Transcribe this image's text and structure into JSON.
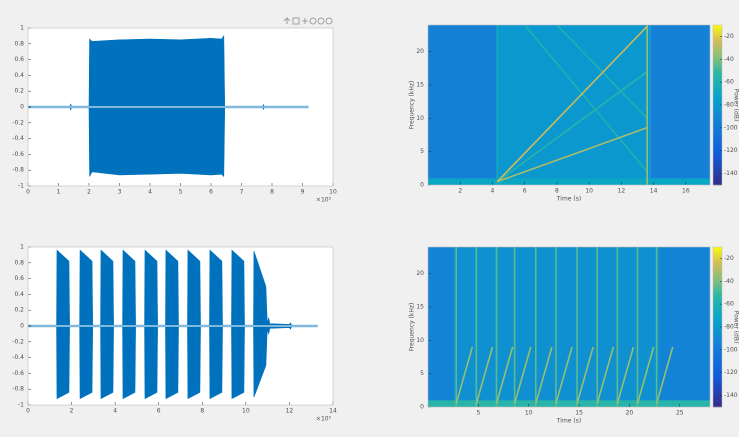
{
  "chart_data": [
    {
      "type": "waveform",
      "x_exponent_label": "×10⁵",
      "xlim": [
        0,
        10
      ],
      "xticks": [
        0,
        1,
        2,
        3,
        4,
        5,
        6,
        7,
        8,
        9,
        10
      ],
      "ylim": [
        -1,
        1
      ],
      "yticks": [
        -1,
        -0.8,
        -0.6,
        -0.4,
        -0.2,
        0,
        0.2,
        0.4,
        0.6,
        0.8,
        1
      ],
      "x": [
        0,
        1.38,
        1.4,
        1.42,
        2.0,
        2.02,
        2.1,
        3.0,
        4.0,
        5.0,
        6.0,
        6.35,
        6.42,
        6.45,
        7.7,
        7.72,
        7.74,
        9.2
      ],
      "series": [
        {
          "color": "#0072bd",
          "values": [
            0.01,
            0.01,
            0.04,
            0.01,
            0.01,
            0.86,
            0.83,
            0.85,
            0.86,
            0.85,
            0.87,
            0.86,
            0.9,
            0.01,
            0.01,
            0.03,
            0.01,
            0.01
          ]
        },
        {
          "color": "#0072bd",
          "values": [
            -0.01,
            -0.01,
            -0.04,
            -0.01,
            -0.01,
            -0.88,
            -0.82,
            -0.86,
            -0.85,
            -0.84,
            -0.86,
            -0.85,
            -0.88,
            -0.01,
            -0.01,
            -0.03,
            -0.01,
            -0.01
          ]
        }
      ]
    },
    {
      "type": "spectrogram",
      "colormap": "parula",
      "xlabel": "Time (s)",
      "ylabel": "Frequency (kHz)",
      "clabel": "Power (dB)",
      "xlim": [
        0,
        17.5
      ],
      "xticks": [
        2,
        4,
        6,
        8,
        10,
        12,
        14,
        16
      ],
      "ylim": [
        0,
        24
      ],
      "yticks": [
        0,
        5,
        10,
        15,
        20
      ],
      "clim": [
        -150,
        -10
      ],
      "cticks": [
        -20,
        -40,
        -60,
        -80,
        -100,
        -120,
        -140
      ],
      "regions": [
        {
          "x": [
            0,
            4.3
          ],
          "y": [
            0,
            24
          ],
          "power": -95
        },
        {
          "x": [
            4.3,
            13.8
          ],
          "y": [
            0,
            24
          ],
          "power": -80
        },
        {
          "x": [
            13.8,
            17.5
          ],
          "y": [
            0,
            24
          ],
          "power": -95
        },
        {
          "x": [
            0,
            17.5
          ],
          "y": [
            0,
            1
          ],
          "power": -70
        }
      ],
      "tracks": [
        {
          "x": [
            4.3,
            4.3
          ],
          "y": [
            0,
            24
          ],
          "power": -65
        },
        {
          "x": [
            6,
            13.6
          ],
          "y": [
            24,
            2
          ],
          "power": -60
        },
        {
          "x": [
            8,
            13.6
          ],
          "y": [
            24,
            10
          ],
          "power": -60
        },
        {
          "x": [
            4.3,
            13.6
          ],
          "y": [
            0.5,
            17
          ],
          "power": -55
        },
        {
          "x": [
            13.6,
            13.6
          ],
          "y": [
            0,
            24
          ],
          "power": -35
        },
        {
          "x": [
            4.3,
            13.6
          ],
          "y": [
            0.5,
            8.6
          ],
          "power": -30
        },
        {
          "x": [
            4.3,
            13.6
          ],
          "y": [
            0.5,
            23.8
          ],
          "power": -25
        }
      ]
    },
    {
      "type": "waveform",
      "x_exponent_label": "×10⁵",
      "xlim": [
        0,
        14
      ],
      "xticks": [
        0,
        2,
        4,
        6,
        8,
        10,
        12,
        14
      ],
      "ylim": [
        -1,
        1
      ],
      "yticks": [
        -1,
        -0.8,
        -0.6,
        -0.4,
        -0.2,
        0,
        0.2,
        0.4,
        0.6,
        0.8,
        1
      ],
      "x": [
        0,
        1.31,
        1.33,
        1.88,
        1.91,
        2.37,
        2.39,
        2.94,
        2.97,
        3.33,
        3.35,
        3.9,
        3.93,
        4.34,
        4.36,
        4.91,
        4.94,
        5.35,
        5.37,
        5.92,
        5.95,
        6.31,
        6.33,
        6.88,
        6.91,
        7.32,
        7.34,
        7.89,
        7.92,
        8.33,
        8.35,
        8.9,
        8.93,
        9.34,
        9.36,
        9.91,
        9.94,
        10.35,
        10.37,
        10.92,
        10.98,
        11.05,
        11.1,
        12.0,
        12.05,
        12.1,
        13.3
      ],
      "series": [
        {
          "color": "#0072bd",
          "values": [
            0.01,
            0.01,
            0.96,
            0.82,
            0.01,
            0.01,
            0.96,
            0.82,
            0.01,
            0.01,
            0.96,
            0.82,
            0.01,
            0.01,
            0.96,
            0.82,
            0.01,
            0.01,
            0.96,
            0.82,
            0.01,
            0.01,
            0.96,
            0.82,
            0.01,
            0.01,
            0.96,
            0.82,
            0.01,
            0.01,
            0.96,
            0.82,
            0.01,
            0.01,
            0.96,
            0.82,
            0.01,
            0.01,
            0.95,
            0.5,
            0.05,
            0.1,
            0.03,
            0.02,
            0.04,
            0.01,
            0.01
          ]
        },
        {
          "color": "#0072bd",
          "values": [
            -0.01,
            -0.01,
            -0.92,
            -0.84,
            -0.01,
            -0.01,
            -0.92,
            -0.84,
            -0.01,
            -0.01,
            -0.92,
            -0.84,
            -0.01,
            -0.01,
            -0.92,
            -0.84,
            -0.01,
            -0.01,
            -0.92,
            -0.84,
            -0.01,
            -0.01,
            -0.92,
            -0.84,
            -0.01,
            -0.01,
            -0.92,
            -0.84,
            -0.01,
            -0.01,
            -0.92,
            -0.84,
            -0.01,
            -0.01,
            -0.92,
            -0.84,
            -0.01,
            -0.01,
            -0.9,
            -0.5,
            -0.05,
            -0.1,
            -0.03,
            -0.02,
            -0.04,
            -0.01,
            -0.01
          ]
        }
      ]
    },
    {
      "type": "spectrogram",
      "colormap": "parula",
      "xlabel": "Time (s)",
      "ylabel": "Frequency (kHz)",
      "clabel": "Power (dB)",
      "xlim": [
        0,
        28
      ],
      "xticks": [
        5,
        10,
        15,
        20,
        25
      ],
      "ylim": [
        0,
        24
      ],
      "yticks": [
        0,
        5,
        10,
        15,
        20
      ],
      "clim": [
        -150,
        -10
      ],
      "cticks": [
        -20,
        -40,
        -60,
        -80,
        -100,
        -120,
        -140
      ],
      "regions": [
        {
          "x": [
            0,
            28
          ],
          "y": [
            0,
            24
          ],
          "power": -92
        },
        {
          "x": [
            2.5,
            23
          ],
          "y": [
            0,
            24
          ],
          "power": -85
        },
        {
          "x": [
            0,
            28
          ],
          "y": [
            0,
            1
          ],
          "power": -55
        }
      ],
      "tracks": [
        {
          "x": [
            2.8,
            2.8
          ],
          "y": [
            0,
            24
          ],
          "power": -45
        },
        {
          "x": [
            2.8,
            4.4
          ],
          "y": [
            0.5,
            9
          ],
          "power": -35
        },
        {
          "x": [
            4.8,
            4.8
          ],
          "y": [
            0,
            24
          ],
          "power": -45
        },
        {
          "x": [
            4.8,
            6.4
          ],
          "y": [
            0.5,
            9
          ],
          "power": -35
        },
        {
          "x": [
            6.8,
            6.8
          ],
          "y": [
            0,
            24
          ],
          "power": -45
        },
        {
          "x": [
            6.8,
            8.4
          ],
          "y": [
            0.5,
            9
          ],
          "power": -35
        },
        {
          "x": [
            8.6,
            8.6
          ],
          "y": [
            0,
            24
          ],
          "power": -45
        },
        {
          "x": [
            8.6,
            10.2
          ],
          "y": [
            0.5,
            9
          ],
          "power": -35
        },
        {
          "x": [
            10.7,
            10.7
          ],
          "y": [
            0,
            24
          ],
          "power": -45
        },
        {
          "x": [
            10.7,
            12.3
          ],
          "y": [
            0.5,
            9
          ],
          "power": -35
        },
        {
          "x": [
            12.7,
            12.7
          ],
          "y": [
            0,
            24
          ],
          "power": -45
        },
        {
          "x": [
            12.7,
            14.3
          ],
          "y": [
            0.5,
            9
          ],
          "power": -35
        },
        {
          "x": [
            14.8,
            14.8
          ],
          "y": [
            0,
            24
          ],
          "power": -45
        },
        {
          "x": [
            14.8,
            16.4
          ],
          "y": [
            0.5,
            9
          ],
          "power": -35
        },
        {
          "x": [
            16.8,
            16.8
          ],
          "y": [
            0,
            24
          ],
          "power": -45
        },
        {
          "x": [
            16.8,
            18.4
          ],
          "y": [
            0.5,
            9
          ],
          "power": -35
        },
        {
          "x": [
            18.8,
            18.8
          ],
          "y": [
            0,
            24
          ],
          "power": -45
        },
        {
          "x": [
            18.8,
            20.4
          ],
          "y": [
            0.5,
            9
          ],
          "power": -35
        },
        {
          "x": [
            20.8,
            20.8
          ],
          "y": [
            0,
            24
          ],
          "power": -45
        },
        {
          "x": [
            20.8,
            22.4
          ],
          "y": [
            0.5,
            9
          ],
          "power": -35
        },
        {
          "x": [
            22.7,
            22.7
          ],
          "y": [
            0,
            24
          ],
          "power": -45
        },
        {
          "x": [
            22.7,
            24.3
          ],
          "y": [
            0.5,
            9
          ],
          "power": -35
        }
      ]
    }
  ]
}
